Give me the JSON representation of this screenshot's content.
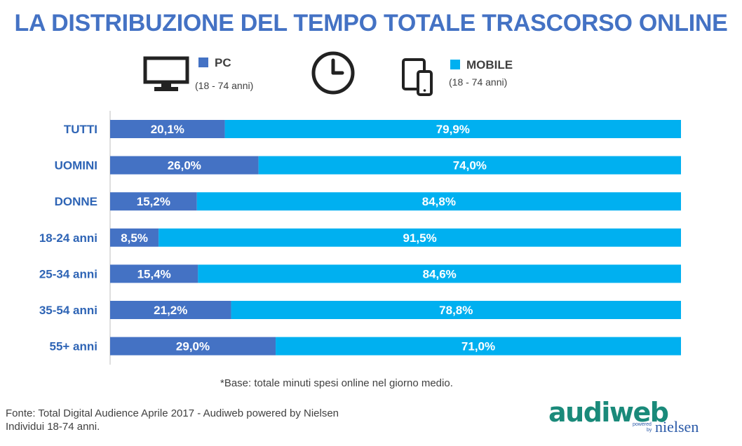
{
  "title": "LA DISTRIBUZIONE DEL TEMPO TOTALE TRASCORSO ONLINE",
  "legend": {
    "pc": {
      "label": "PC",
      "sub": "(18 - 74 anni)",
      "color": "#4472c4",
      "icon": "monitor-icon"
    },
    "clock_icon": "clock-icon",
    "mobile": {
      "label": "MOBILE",
      "sub": "(18 - 74 anni)",
      "color": "#00b0f0",
      "icon": "tablet-phone-icon"
    }
  },
  "chart_data": {
    "type": "bar",
    "stacked": true,
    "orientation": "horizontal",
    "categories": [
      "TUTTI",
      "UOMINI",
      "DONNE",
      "18-24 anni",
      "25-34 anni",
      "35-54 anni",
      "55+ anni"
    ],
    "series": [
      {
        "name": "PC",
        "values": [
          20.1,
          26.0,
          15.2,
          8.5,
          15.4,
          21.2,
          29.0
        ],
        "labels": [
          "20,1%",
          "26,0%",
          "15,2%",
          "8,5%",
          "15,4%",
          "21,2%",
          "29,0%"
        ]
      },
      {
        "name": "MOBILE",
        "values": [
          79.9,
          74.0,
          84.8,
          91.5,
          84.6,
          78.8,
          71.0
        ],
        "labels": [
          "79,9%",
          "74,0%",
          "84,8%",
          "91,5%",
          "84,6%",
          "78,8%",
          "71,0%"
        ]
      }
    ],
    "xlim": [
      0,
      100
    ],
    "grid": false
  },
  "note": "*Base: totale minuti spesi online nel giorno medio.",
  "footer": {
    "line1": "Fonte: Total Digital Audience Aprile 2017 - Audiweb powered by Nielsen",
    "line2": "Individui 18-74 anni."
  },
  "logo": {
    "audiweb": "audiweb",
    "powered": "powered",
    "by": "by",
    "nielsen": "nielsen"
  }
}
